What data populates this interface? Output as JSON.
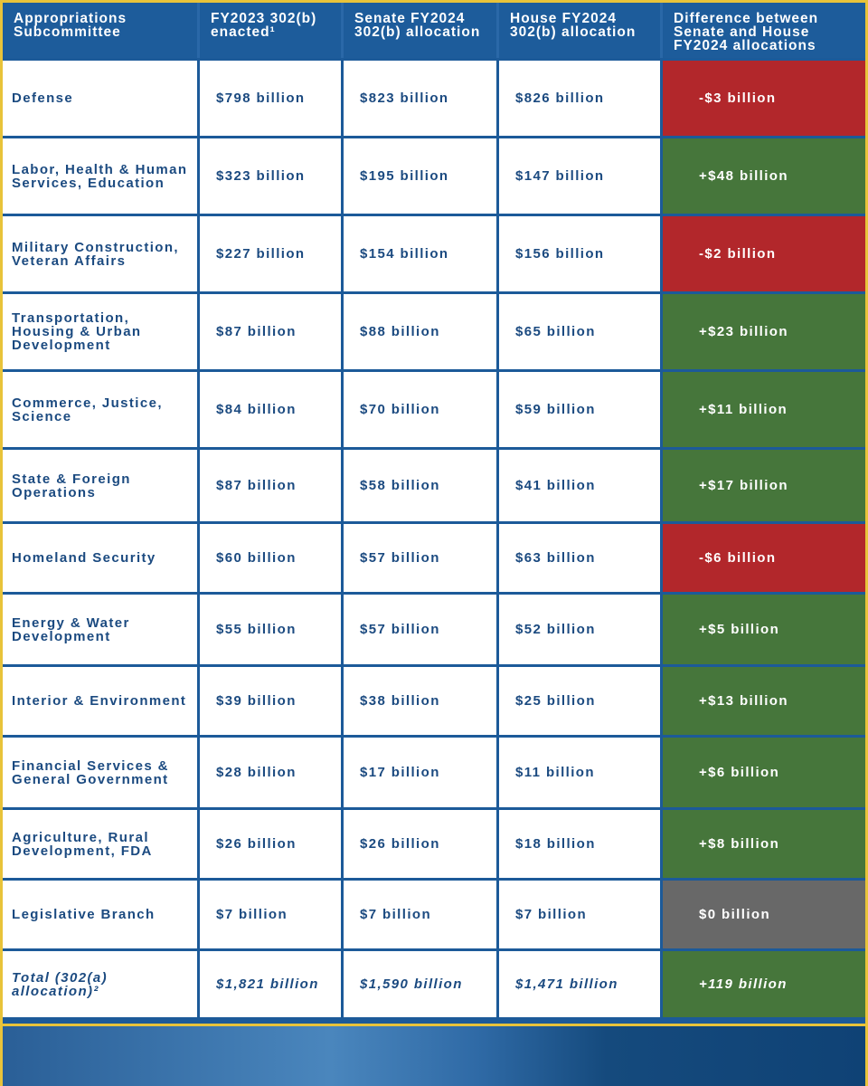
{
  "table": {
    "headers": [
      "Appropriations Subcommittee",
      "FY2023 302(b) enacted¹",
      "Senate FY2024 302(b) allocation",
      "House FY2024 302(b) allocation",
      "Difference between Senate and House FY2024 allocations"
    ],
    "rows": [
      {
        "name": "Defense",
        "fy2023": "$798 billion",
        "senate": "$823 billion",
        "house": "$826 billion",
        "diff": "-$3 billion",
        "sign": "neg"
      },
      {
        "name": "Labor, Health & Human Services, Education",
        "fy2023": "$323 billion",
        "senate": "$195 billion",
        "house": "$147 billion",
        "diff": "+$48 billion",
        "sign": "pos"
      },
      {
        "name": "Military Construction, Veteran Affairs",
        "fy2023": "$227 billion",
        "senate": "$154 billion",
        "house": "$156 billion",
        "diff": "-$2 billion",
        "sign": "neg"
      },
      {
        "name": "Transportation, Housing & Urban Development",
        "fy2023": "$87 billion",
        "senate": "$88 billion",
        "house": "$65 billion",
        "diff": "+$23 billion",
        "sign": "pos"
      },
      {
        "name": "Commerce, Justice, Science",
        "fy2023": "$84 billion",
        "senate": "$70 billion",
        "house": "$59 billion",
        "diff": "+$11 billion",
        "sign": "pos"
      },
      {
        "name": "State & Foreign Operations",
        "fy2023": "$87 billion",
        "senate": "$58 billion",
        "house": "$41 billion",
        "diff": "+$17 billion",
        "sign": "pos"
      },
      {
        "name": "Homeland Security",
        "fy2023": "$60 billion",
        "senate": "$57 billion",
        "house": "$63 billion",
        "diff": "-$6 billion",
        "sign": "neg"
      },
      {
        "name": "Energy & Water Development",
        "fy2023": "$55 billion",
        "senate": "$57 billion",
        "house": "$52 billion",
        "diff": "+$5 billion",
        "sign": "pos"
      },
      {
        "name": "Interior & Environment",
        "fy2023": "$39 billion",
        "senate": "$38 billion",
        "house": "$25 billion",
        "diff": "+$13 billion",
        "sign": "pos"
      },
      {
        "name": "Financial Services & General Government",
        "fy2023": "$28 billion",
        "senate": "$17 billion",
        "house": "$11 billion",
        "diff": "+$6 billion",
        "sign": "pos"
      },
      {
        "name": "Agriculture, Rural Development, FDA",
        "fy2023": "$26 billion",
        "senate": "$26 billion",
        "house": "$18 billion",
        "diff": "+$8 billion",
        "sign": "pos"
      },
      {
        "name": "Legislative Branch",
        "fy2023": "$7 billion",
        "senate": "$7 billion",
        "house": "$7 billion",
        "diff": "$0 billion",
        "sign": "zero"
      }
    ],
    "total": {
      "name": "Total (302(a) allocation)²",
      "fy2023": "$1,821 billion",
      "senate": "$1,590 billion",
      "house": "$1,471 billion",
      "diff": "+119 billion",
      "sign": "pos"
    }
  },
  "colors": {
    "border_gold": "#e8c33a",
    "header_blue": "#1d5c9b",
    "text_blue": "#1b4a80",
    "negative": "#b2272b",
    "positive": "#46763b",
    "zero": "#686868"
  }
}
